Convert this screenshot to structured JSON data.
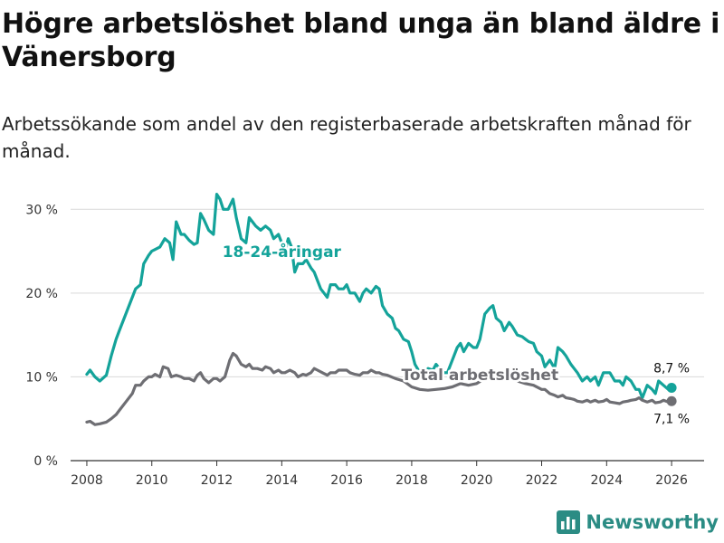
{
  "header": {
    "title": "Högre arbetslöshet bland unga än bland äldre i Vänersborg",
    "subtitle": "Arbetssökande som andel av den registerbaserade arbetskraften månad för månad."
  },
  "brand": {
    "name": "Newsworthy",
    "icon": "newsworthy-logo-icon"
  },
  "colors": {
    "youth": "#14a39a",
    "total": "#6e6e73",
    "grid": "#d9d9d9",
    "axis": "#333333",
    "brand": "#2b8c84"
  },
  "chart_data": {
    "type": "line",
    "title": "Högre arbetslöshet bland unga än bland äldre i Vänersborg",
    "xlabel": "",
    "ylabel": "",
    "xlim": [
      2007.5,
      2027
    ],
    "ylim": [
      0,
      31
    ],
    "y_ticks": [
      0,
      10,
      20,
      30
    ],
    "y_tick_labels": [
      "0 %",
      "10 %",
      "20 %",
      "30 %"
    ],
    "x_ticks": [
      2008,
      2010,
      2012,
      2014,
      2016,
      2018,
      2020,
      2022,
      2024,
      2026
    ],
    "x_tick_labels": [
      "2008",
      "2010",
      "2012",
      "2014",
      "2016",
      "2018",
      "2020",
      "2022",
      "2024",
      "2026"
    ],
    "grid": true,
    "series": [
      {
        "name": "18-24-åringar",
        "color": "#14a39a",
        "end_label": "8,7 %",
        "points": [
          [
            2008.0,
            10.3
          ],
          [
            2008.1,
            10.8
          ],
          [
            2008.25,
            10.0
          ],
          [
            2008.4,
            9.5
          ],
          [
            2008.6,
            10.2
          ],
          [
            2008.75,
            12.5
          ],
          [
            2008.9,
            14.5
          ],
          [
            2009.0,
            15.5
          ],
          [
            2009.2,
            17.5
          ],
          [
            2009.4,
            19.5
          ],
          [
            2009.5,
            20.5
          ],
          [
            2009.65,
            21.0
          ],
          [
            2009.75,
            23.5
          ],
          [
            2009.9,
            24.5
          ],
          [
            2010.0,
            25.0
          ],
          [
            2010.1,
            25.2
          ],
          [
            2010.25,
            25.5
          ],
          [
            2010.4,
            26.5
          ],
          [
            2010.55,
            26.0
          ],
          [
            2010.65,
            24.0
          ],
          [
            2010.75,
            28.5
          ],
          [
            2010.9,
            27.0
          ],
          [
            2011.0,
            27.0
          ],
          [
            2011.15,
            26.3
          ],
          [
            2011.3,
            25.8
          ],
          [
            2011.4,
            26.0
          ],
          [
            2011.5,
            29.5
          ],
          [
            2011.6,
            28.8
          ],
          [
            2011.75,
            27.5
          ],
          [
            2011.9,
            27.0
          ],
          [
            2012.0,
            31.8
          ],
          [
            2012.1,
            31.2
          ],
          [
            2012.2,
            30.0
          ],
          [
            2012.35,
            30.0
          ],
          [
            2012.5,
            31.2
          ],
          [
            2012.6,
            29.0
          ],
          [
            2012.75,
            26.5
          ],
          [
            2012.9,
            26.0
          ],
          [
            2013.0,
            29.0
          ],
          [
            2013.1,
            28.5
          ],
          [
            2013.2,
            28.0
          ],
          [
            2013.35,
            27.5
          ],
          [
            2013.5,
            28.0
          ],
          [
            2013.65,
            27.5
          ],
          [
            2013.75,
            26.5
          ],
          [
            2013.9,
            27.0
          ],
          [
            2014.0,
            26.0
          ],
          [
            2014.1,
            25.0
          ],
          [
            2014.2,
            26.5
          ],
          [
            2014.3,
            25.5
          ],
          [
            2014.4,
            22.5
          ],
          [
            2014.5,
            23.5
          ],
          [
            2014.65,
            23.5
          ],
          [
            2014.75,
            24.0
          ],
          [
            2014.9,
            23.0
          ],
          [
            2015.0,
            22.5
          ],
          [
            2015.1,
            21.5
          ],
          [
            2015.2,
            20.5
          ],
          [
            2015.3,
            20.0
          ],
          [
            2015.4,
            19.5
          ],
          [
            2015.5,
            21.0
          ],
          [
            2015.65,
            21.0
          ],
          [
            2015.75,
            20.5
          ],
          [
            2015.9,
            20.5
          ],
          [
            2016.0,
            21.0
          ],
          [
            2016.1,
            20.0
          ],
          [
            2016.25,
            20.0
          ],
          [
            2016.4,
            19.0
          ],
          [
            2016.5,
            20.0
          ],
          [
            2016.6,
            20.5
          ],
          [
            2016.75,
            20.0
          ],
          [
            2016.9,
            20.8
          ],
          [
            2017.0,
            20.5
          ],
          [
            2017.1,
            18.5
          ],
          [
            2017.25,
            17.5
          ],
          [
            2017.4,
            17.0
          ],
          [
            2017.5,
            15.8
          ],
          [
            2017.6,
            15.5
          ],
          [
            2017.75,
            14.5
          ],
          [
            2017.9,
            14.2
          ],
          [
            2018.0,
            13.0
          ],
          [
            2018.1,
            11.5
          ],
          [
            2018.25,
            10.5
          ],
          [
            2018.4,
            10.5
          ],
          [
            2018.5,
            11.0
          ],
          [
            2018.65,
            10.8
          ],
          [
            2018.75,
            11.5
          ],
          [
            2018.9,
            10.8
          ],
          [
            2019.0,
            10.5
          ],
          [
            2019.1,
            10.5
          ],
          [
            2019.25,
            12.0
          ],
          [
            2019.4,
            13.5
          ],
          [
            2019.5,
            14.0
          ],
          [
            2019.6,
            13.0
          ],
          [
            2019.75,
            14.0
          ],
          [
            2019.9,
            13.5
          ],
          [
            2020.0,
            13.5
          ],
          [
            2020.1,
            14.5
          ],
          [
            2020.25,
            17.5
          ],
          [
            2020.4,
            18.2
          ],
          [
            2020.5,
            18.5
          ],
          [
            2020.6,
            17.0
          ],
          [
            2020.75,
            16.5
          ],
          [
            2020.85,
            15.5
          ],
          [
            2021.0,
            16.5
          ],
          [
            2021.1,
            16.0
          ],
          [
            2021.25,
            15.0
          ],
          [
            2021.4,
            14.8
          ],
          [
            2021.5,
            14.5
          ],
          [
            2021.6,
            14.2
          ],
          [
            2021.75,
            14.0
          ],
          [
            2021.85,
            13.0
          ],
          [
            2022.0,
            12.5
          ],
          [
            2022.1,
            11.2
          ],
          [
            2022.25,
            12.0
          ],
          [
            2022.4,
            11.0
          ],
          [
            2022.5,
            13.5
          ],
          [
            2022.65,
            13.0
          ],
          [
            2022.75,
            12.5
          ],
          [
            2022.9,
            11.5
          ],
          [
            2023.0,
            11.0
          ],
          [
            2023.1,
            10.5
          ],
          [
            2023.25,
            9.5
          ],
          [
            2023.4,
            10.0
          ],
          [
            2023.5,
            9.5
          ],
          [
            2023.65,
            10.0
          ],
          [
            2023.75,
            9.0
          ],
          [
            2023.9,
            10.5
          ],
          [
            2024.0,
            10.5
          ],
          [
            2024.1,
            10.5
          ],
          [
            2024.25,
            9.5
          ],
          [
            2024.4,
            9.5
          ],
          [
            2024.5,
            9.0
          ],
          [
            2024.6,
            10.0
          ],
          [
            2024.75,
            9.5
          ],
          [
            2024.9,
            8.5
          ],
          [
            2025.0,
            8.5
          ],
          [
            2025.1,
            7.5
          ],
          [
            2025.25,
            9.0
          ],
          [
            2025.4,
            8.5
          ],
          [
            2025.5,
            8.0
          ],
          [
            2025.6,
            9.5
          ],
          [
            2025.75,
            9.0
          ],
          [
            2025.9,
            8.5
          ],
          [
            2026.0,
            8.7
          ]
        ]
      },
      {
        "name": "Total arbetslöshet",
        "color": "#6e6e73",
        "end_label": "7,1 %",
        "points": [
          [
            2008.0,
            4.6
          ],
          [
            2008.1,
            4.7
          ],
          [
            2008.25,
            4.3
          ],
          [
            2008.4,
            4.4
          ],
          [
            2008.6,
            4.6
          ],
          [
            2008.75,
            5.0
          ],
          [
            2008.9,
            5.5
          ],
          [
            2009.0,
            6.0
          ],
          [
            2009.2,
            7.0
          ],
          [
            2009.4,
            8.0
          ],
          [
            2009.5,
            9.0
          ],
          [
            2009.65,
            9.0
          ],
          [
            2009.75,
            9.5
          ],
          [
            2009.9,
            10.0
          ],
          [
            2010.0,
            10.0
          ],
          [
            2010.1,
            10.3
          ],
          [
            2010.25,
            10.0
          ],
          [
            2010.35,
            11.2
          ],
          [
            2010.5,
            11.0
          ],
          [
            2010.6,
            10.0
          ],
          [
            2010.75,
            10.2
          ],
          [
            2010.9,
            10.0
          ],
          [
            2011.0,
            9.8
          ],
          [
            2011.15,
            9.8
          ],
          [
            2011.3,
            9.5
          ],
          [
            2011.4,
            10.2
          ],
          [
            2011.5,
            10.5
          ],
          [
            2011.6,
            9.8
          ],
          [
            2011.75,
            9.3
          ],
          [
            2011.9,
            9.8
          ],
          [
            2012.0,
            9.8
          ],
          [
            2012.1,
            9.5
          ],
          [
            2012.25,
            10.0
          ],
          [
            2012.4,
            12.0
          ],
          [
            2012.5,
            12.8
          ],
          [
            2012.6,
            12.5
          ],
          [
            2012.75,
            11.5
          ],
          [
            2012.9,
            11.2
          ],
          [
            2013.0,
            11.5
          ],
          [
            2013.1,
            11.0
          ],
          [
            2013.25,
            11.0
          ],
          [
            2013.4,
            10.8
          ],
          [
            2013.5,
            11.2
          ],
          [
            2013.65,
            11.0
          ],
          [
            2013.75,
            10.5
          ],
          [
            2013.9,
            10.8
          ],
          [
            2014.0,
            10.5
          ],
          [
            2014.1,
            10.5
          ],
          [
            2014.25,
            10.8
          ],
          [
            2014.4,
            10.5
          ],
          [
            2014.5,
            10.0
          ],
          [
            2014.65,
            10.3
          ],
          [
            2014.75,
            10.2
          ],
          [
            2014.9,
            10.5
          ],
          [
            2015.0,
            11.0
          ],
          [
            2015.1,
            10.8
          ],
          [
            2015.25,
            10.5
          ],
          [
            2015.4,
            10.2
          ],
          [
            2015.5,
            10.5
          ],
          [
            2015.65,
            10.5
          ],
          [
            2015.75,
            10.8
          ],
          [
            2015.9,
            10.8
          ],
          [
            2016.0,
            10.8
          ],
          [
            2016.1,
            10.5
          ],
          [
            2016.25,
            10.3
          ],
          [
            2016.4,
            10.2
          ],
          [
            2016.5,
            10.5
          ],
          [
            2016.65,
            10.5
          ],
          [
            2016.75,
            10.8
          ],
          [
            2016.9,
            10.5
          ],
          [
            2017.0,
            10.5
          ],
          [
            2017.1,
            10.3
          ],
          [
            2017.25,
            10.2
          ],
          [
            2017.5,
            9.8
          ],
          [
            2017.75,
            9.5
          ],
          [
            2018.0,
            8.8
          ],
          [
            2018.25,
            8.5
          ],
          [
            2018.5,
            8.4
          ],
          [
            2018.75,
            8.5
          ],
          [
            2019.0,
            8.6
          ],
          [
            2019.25,
            8.8
          ],
          [
            2019.5,
            9.2
          ],
          [
            2019.75,
            9.0
          ],
          [
            2020.0,
            9.2
          ],
          [
            2020.25,
            9.8
          ],
          [
            2020.5,
            10.2
          ],
          [
            2020.75,
            10.0
          ],
          [
            2021.0,
            9.8
          ],
          [
            2021.25,
            9.5
          ],
          [
            2021.5,
            9.2
          ],
          [
            2021.75,
            9.0
          ],
          [
            2022.0,
            8.5
          ],
          [
            2022.1,
            8.5
          ],
          [
            2022.25,
            8.0
          ],
          [
            2022.4,
            7.8
          ],
          [
            2022.5,
            7.6
          ],
          [
            2022.65,
            7.8
          ],
          [
            2022.75,
            7.5
          ],
          [
            2022.9,
            7.4
          ],
          [
            2023.0,
            7.3
          ],
          [
            2023.1,
            7.1
          ],
          [
            2023.25,
            7.0
          ],
          [
            2023.4,
            7.2
          ],
          [
            2023.5,
            7.0
          ],
          [
            2023.65,
            7.2
          ],
          [
            2023.75,
            7.0
          ],
          [
            2023.9,
            7.1
          ],
          [
            2024.0,
            7.3
          ],
          [
            2024.1,
            7.0
          ],
          [
            2024.25,
            6.9
          ],
          [
            2024.4,
            6.8
          ],
          [
            2024.5,
            7.0
          ],
          [
            2024.65,
            7.1
          ],
          [
            2024.75,
            7.2
          ],
          [
            2024.9,
            7.3
          ],
          [
            2025.0,
            7.5
          ],
          [
            2025.1,
            7.2
          ],
          [
            2025.25,
            7.0
          ],
          [
            2025.4,
            7.2
          ],
          [
            2025.5,
            6.9
          ],
          [
            2025.65,
            7.0
          ],
          [
            2025.75,
            7.2
          ],
          [
            2025.9,
            7.0
          ],
          [
            2026.0,
            7.1
          ]
        ]
      }
    ],
    "annotations": [
      {
        "text": "18-24-åringar",
        "x": 2014.0,
        "y": 24.3,
        "series": "18-24-åringar"
      },
      {
        "text": "Total arbetslöshet",
        "x": 2020.1,
        "y": 9.6,
        "series": "Total arbetslöshet"
      }
    ]
  }
}
